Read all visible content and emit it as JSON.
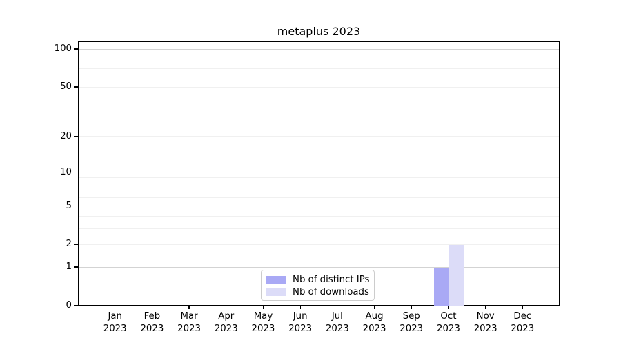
{
  "chart_data": {
    "type": "bar",
    "title": "metaplus 2023",
    "categories": [
      "Jan",
      "Feb",
      "Mar",
      "Apr",
      "May",
      "Jun",
      "Jul",
      "Aug",
      "Sep",
      "Oct",
      "Nov",
      "Dec"
    ],
    "category_year": "2023",
    "series": [
      {
        "name": "Nb of distinct IPs",
        "color": "#a9a9f5",
        "values": [
          0,
          0,
          0,
          0,
          0,
          0,
          0,
          0,
          0,
          1,
          0,
          0
        ]
      },
      {
        "name": "Nb of downloads",
        "color": "#dcdcf8",
        "values": [
          0,
          0,
          0,
          0,
          0,
          0,
          0,
          0,
          0,
          2,
          0,
          0
        ]
      }
    ],
    "xlabel": "",
    "ylabel": "",
    "y_scale": "log1p",
    "ylim": [
      0,
      115
    ],
    "yticks": [
      0,
      1,
      2,
      5,
      10,
      20,
      50,
      100
    ],
    "grid": {
      "major_values": [
        1,
        10,
        100
      ],
      "minor_values": [
        2,
        3,
        4,
        5,
        6,
        7,
        8,
        9,
        20,
        30,
        40,
        50,
        60,
        70,
        80,
        90
      ],
      "major_color": "#d3d3d3",
      "minor_color": "#f0f0f0"
    },
    "legend_position": "lower center inside",
    "axis_color": "#000000",
    "background_color": "#ffffff"
  }
}
